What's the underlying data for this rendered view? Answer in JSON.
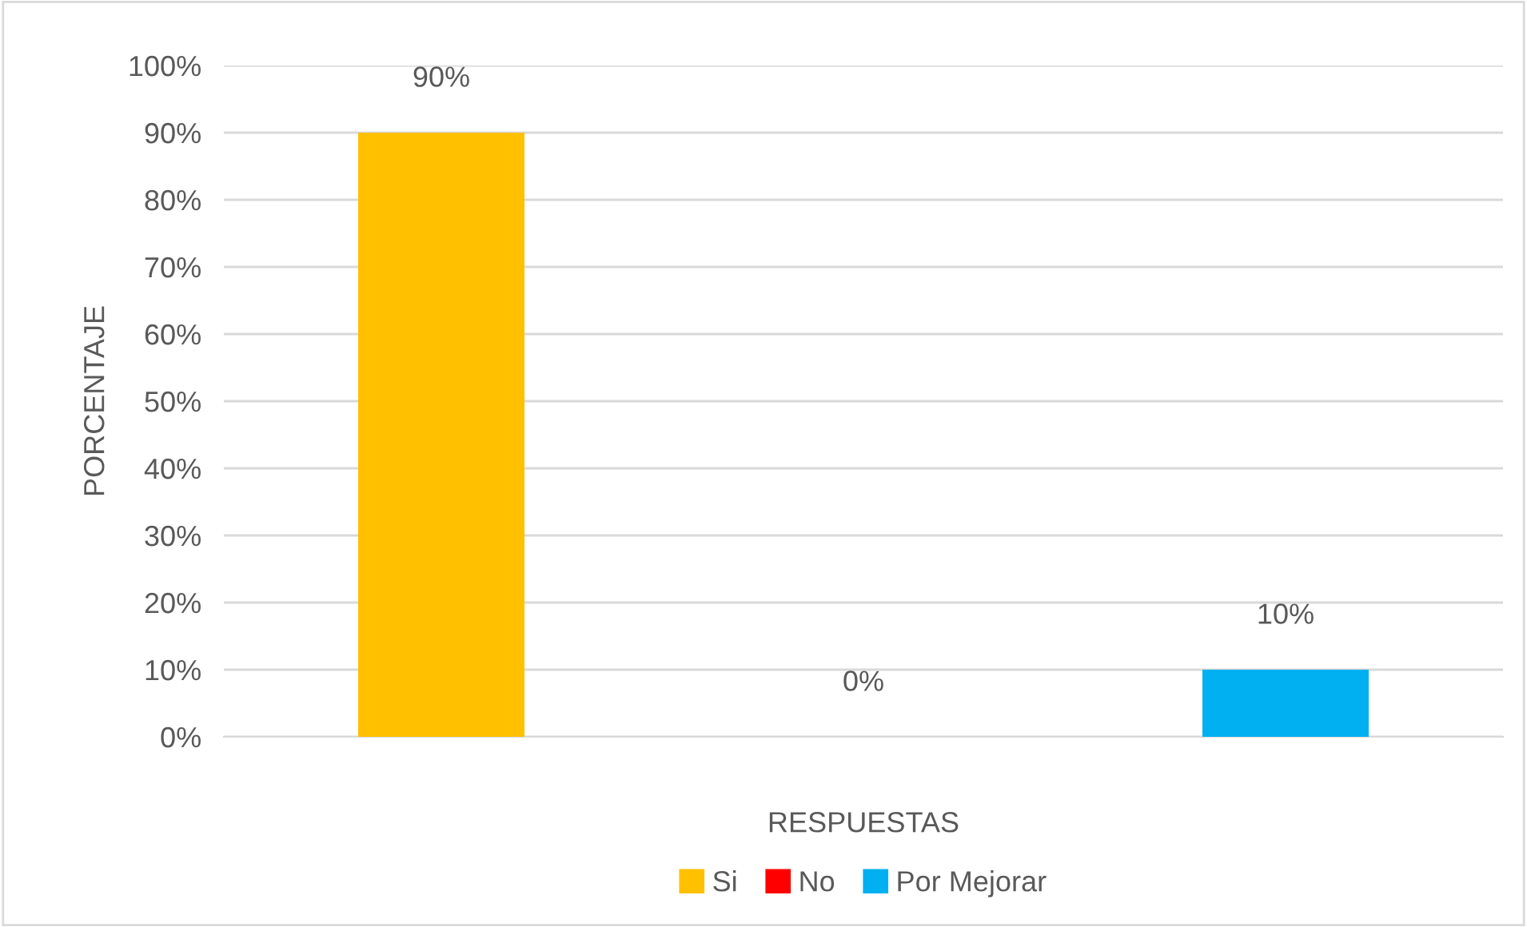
{
  "chart_data": {
    "type": "bar",
    "xlabel": "RESPUESTAS",
    "ylabel": "PORCENTAJE",
    "categories": [
      null
    ],
    "series": [
      {
        "name": "Si",
        "color": "#ffc000",
        "values": [
          90
        ],
        "value_labels": [
          "90%"
        ]
      },
      {
        "name": "No",
        "color": "#ff0000",
        "values": [
          0
        ],
        "value_labels": [
          "0%"
        ]
      },
      {
        "name": "Por Mejorar",
        "color": "#00b0f0",
        "values": [
          10
        ],
        "value_labels": [
          "10%"
        ]
      }
    ],
    "ylim": [
      0,
      100
    ],
    "yticks": [
      {
        "value": 0,
        "label": "0%"
      },
      {
        "value": 10,
        "label": "10%"
      },
      {
        "value": 20,
        "label": "20%"
      },
      {
        "value": 30,
        "label": "30%"
      },
      {
        "value": 40,
        "label": "40%"
      },
      {
        "value": 50,
        "label": "50%"
      },
      {
        "value": 60,
        "label": "60%"
      },
      {
        "value": 70,
        "label": "70%"
      },
      {
        "value": 80,
        "label": "80%"
      },
      {
        "value": 90,
        "label": "90%"
      },
      {
        "value": 100,
        "label": "100%"
      }
    ],
    "grid": "y",
    "legend": "bottom"
  }
}
